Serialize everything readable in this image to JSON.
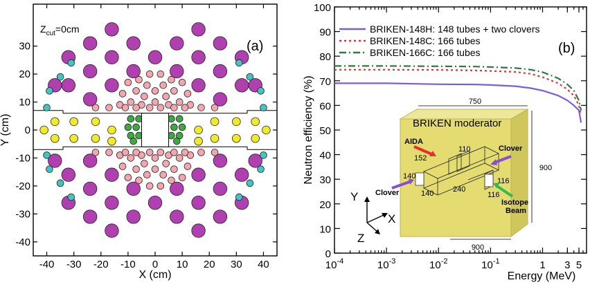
{
  "chart_data": [
    {
      "panel": "(a)",
      "type": "scatter",
      "annotation": "Z",
      "annotation_sub": "cut",
      "annotation_suffix": "=0cm",
      "xlabel": "X (cm)",
      "ylabel": "Y (cm)",
      "xlim": [
        -45,
        45
      ],
      "ylim": [
        -45,
        45
      ],
      "xticks": [
        -40,
        -30,
        -20,
        -10,
        0,
        10,
        20,
        30,
        40
      ],
      "yticks": [
        -40,
        -30,
        -20,
        -10,
        0,
        10,
        20,
        30
      ],
      "slab_y": [
        7,
        -7
      ],
      "slab_gap_x": [
        -34,
        34
      ],
      "slab_gap_y": [
        6,
        -6
      ],
      "central_square": [
        -5,
        -6,
        5,
        6
      ],
      "colors": {
        "large": "#b03fb0",
        "small": "#f2a6ad",
        "clover": "#3fa845",
        "cyan": "#45c3c3",
        "yellow": "#f0ea2c"
      },
      "series": [
        {
          "group": "large",
          "radius": 2.5,
          "points": [
            [
              -16,
              36
            ],
            [
              16,
              36
            ],
            [
              -24,
              31
            ],
            [
              -8,
              31
            ],
            [
              8,
              31
            ],
            [
              24,
              31
            ],
            [
              -32,
              26
            ],
            [
              -16,
              26
            ],
            [
              0,
              26
            ],
            [
              16,
              26
            ],
            [
              32,
              26
            ],
            [
              -24,
              21
            ],
            [
              -8,
              21
            ],
            [
              8,
              21
            ],
            [
              24,
              21
            ],
            [
              -32,
              16
            ],
            [
              -16,
              16
            ],
            [
              16,
              16
            ],
            [
              32,
              16
            ],
            [
              -24,
              11
            ],
            [
              24,
              11
            ],
            [
              -37,
              16
            ],
            [
              37,
              16
            ],
            [
              -16,
              -36
            ],
            [
              16,
              -36
            ],
            [
              -24,
              -31
            ],
            [
              -8,
              -31
            ],
            [
              8,
              -31
            ],
            [
              24,
              -31
            ],
            [
              -32,
              -26
            ],
            [
              -16,
              -26
            ],
            [
              0,
              -26
            ],
            [
              16,
              -26
            ],
            [
              32,
              -26
            ],
            [
              -24,
              -21
            ],
            [
              -8,
              -21
            ],
            [
              8,
              -21
            ],
            [
              24,
              -21
            ],
            [
              -32,
              -16
            ],
            [
              -16,
              -16
            ],
            [
              16,
              -16
            ],
            [
              32,
              -16
            ],
            [
              -24,
              -11
            ],
            [
              24,
              -11
            ],
            [
              -37,
              -11
            ],
            [
              37,
              -11
            ]
          ]
        },
        {
          "group": "small",
          "radius": 1.25,
          "points": [
            [
              -2,
              20
            ],
            [
              2,
              20
            ],
            [
              -6,
              18
            ],
            [
              6,
              18
            ],
            [
              -10,
              17
            ],
            [
              -3,
              16
            ],
            [
              3,
              16
            ],
            [
              10,
              17
            ],
            [
              -7,
              14
            ],
            [
              0,
              14
            ],
            [
              7,
              14
            ],
            [
              -12,
              13
            ],
            [
              12,
              13
            ],
            [
              -4,
              12
            ],
            [
              4,
              12
            ],
            [
              -9,
              10
            ],
            [
              0,
              10
            ],
            [
              9,
              10
            ],
            [
              -13,
              9
            ],
            [
              -5,
              9
            ],
            [
              5,
              9
            ],
            [
              13,
              9
            ],
            [
              -17,
              8
            ],
            [
              -11,
              8
            ],
            [
              -7,
              8
            ],
            [
              -2,
              8
            ],
            [
              2,
              8
            ],
            [
              7,
              8
            ],
            [
              11,
              8
            ],
            [
              17,
              8
            ],
            [
              -22,
              8
            ],
            [
              22,
              8
            ],
            [
              -2,
              -20
            ],
            [
              2,
              -20
            ],
            [
              -6,
              -18
            ],
            [
              6,
              -18
            ],
            [
              -10,
              -17
            ],
            [
              -3,
              -16
            ],
            [
              3,
              -16
            ],
            [
              10,
              -17
            ],
            [
              -7,
              -14
            ],
            [
              0,
              -14
            ],
            [
              7,
              -14
            ],
            [
              -12,
              -13
            ],
            [
              12,
              -13
            ],
            [
              -4,
              -12
            ],
            [
              4,
              -12
            ],
            [
              -9,
              -10
            ],
            [
              0,
              -10
            ],
            [
              9,
              -10
            ],
            [
              -13,
              -9
            ],
            [
              -5,
              -9
            ],
            [
              5,
              -9
            ],
            [
              13,
              -9
            ],
            [
              -17,
              -8
            ],
            [
              -11,
              -8
            ],
            [
              -7,
              -8
            ],
            [
              -2,
              -8
            ],
            [
              2,
              -8
            ],
            [
              7,
              -8
            ],
            [
              11,
              -8
            ],
            [
              17,
              -8
            ],
            [
              -22,
              -8
            ],
            [
              22,
              -8
            ]
          ]
        },
        {
          "group": "clover",
          "radius": 1.25,
          "points": [
            [
              -9,
              4
            ],
            [
              -6,
              4
            ],
            [
              -10,
              1
            ],
            [
              -7,
              1
            ],
            [
              -9,
              -2
            ],
            [
              -6,
              -2
            ],
            [
              -8,
              -4
            ],
            [
              6,
              4
            ],
            [
              9,
              4
            ],
            [
              7,
              1
            ],
            [
              10,
              1
            ],
            [
              6,
              -2
            ],
            [
              9,
              -2
            ],
            [
              8,
              -4
            ]
          ]
        },
        {
          "group": "cyan",
          "radius": 1.25,
          "points": [
            [
              -31,
              24
            ],
            [
              31,
              24
            ],
            [
              -35,
              19
            ],
            [
              35,
              19
            ],
            [
              -39,
              14
            ],
            [
              39,
              14
            ],
            [
              -40,
              8
            ],
            [
              40,
              8
            ],
            [
              -31,
              -24
            ],
            [
              31,
              -24
            ],
            [
              -35,
              -19
            ],
            [
              35,
              -19
            ],
            [
              -39,
              -14
            ],
            [
              39,
              -14
            ],
            [
              -40,
              -9
            ],
            [
              40,
              -9
            ]
          ]
        },
        {
          "group": "yellow",
          "radius": 1.5,
          "points": [
            [
              -37,
              3
            ],
            [
              -37,
              -3
            ],
            [
              -30,
              3
            ],
            [
              -30,
              -3
            ],
            [
              -22,
              3
            ],
            [
              -22,
              -3
            ],
            [
              -16,
              0
            ],
            [
              -16,
              -4
            ],
            [
              16,
              0
            ],
            [
              16,
              -4
            ],
            [
              22,
              3
            ],
            [
              22,
              -3
            ],
            [
              30,
              3
            ],
            [
              30,
              -3
            ],
            [
              37,
              3
            ],
            [
              37,
              -3
            ],
            [
              -41,
              0
            ],
            [
              41,
              0
            ]
          ]
        }
      ]
    },
    {
      "panel": "(b)",
      "type": "line",
      "xlabel": "Energy (MeV)",
      "ylabel": "Neutron efficiency (%)",
      "xscale": "log",
      "xlim": [
        0.0001,
        7
      ],
      "ylim": [
        0,
        100
      ],
      "xticks": [
        0.0001,
        0.001,
        0.01,
        0.1,
        1,
        3,
        5
      ],
      "xtick_labels": [
        "10",
        "10",
        "10",
        "10",
        "1",
        "3",
        "5"
      ],
      "xtick_exponents": [
        "-4",
        "-3",
        "-2",
        "-1",
        "",
        "",
        ""
      ],
      "yticks": [
        0,
        10,
        20,
        30,
        40,
        50,
        60,
        70,
        80,
        90,
        100
      ],
      "legend_position": "top",
      "series": [
        {
          "name": "BRIKEN-148H: 148 tubes + two clovers",
          "color": "#7a5ce0",
          "style": "solid",
          "x": [
            0.0001,
            0.001,
            0.01,
            0.05,
            0.1,
            0.3,
            0.6,
            1,
            2,
            3,
            4,
            5,
            5.5
          ],
          "y": [
            69,
            69,
            68.6,
            68.5,
            68.3,
            67.8,
            67,
            66,
            64,
            62,
            60,
            58,
            53
          ]
        },
        {
          "name": "BRIKEN-148C: 166 tubes",
          "color": "#e03030",
          "style": "dotted",
          "x": [
            0.0001,
            0.001,
            0.01,
            0.05,
            0.1,
            0.3,
            0.6,
            1,
            2,
            3,
            4,
            5,
            5.5
          ],
          "y": [
            74.5,
            74.5,
            74.4,
            74.2,
            74,
            73.6,
            72.8,
            71.5,
            69,
            66.5,
            64,
            60,
            56
          ]
        },
        {
          "name": "BRIKEN-166C: 166 tubes",
          "color": "#2e7a38",
          "style": "dashdot",
          "x": [
            0.0001,
            0.001,
            0.01,
            0.05,
            0.1,
            0.3,
            0.6,
            1,
            2,
            3,
            4,
            5,
            5.5
          ],
          "y": [
            76,
            76,
            75.9,
            75.8,
            75.6,
            75.2,
            74.5,
            73.5,
            71,
            68.5,
            66,
            62,
            58
          ]
        }
      ],
      "inset": {
        "title": "BRIKEN moderator",
        "box_color": "#e8e07a",
        "dims": [
          "750",
          "900",
          "900",
          "110",
          "152",
          "140",
          "140",
          "240",
          "116",
          "116"
        ],
        "labels": {
          "aida": "AIDA",
          "clover_right": "Clover",
          "clover_left": "Clover",
          "isotope": "Isotope",
          "beam": "Beam"
        },
        "axes": [
          "Y",
          "X",
          "Z"
        ],
        "arrow_colors": {
          "aida": "#e53030",
          "clover": "#8a4fd0",
          "beam": "#36b84a"
        }
      }
    }
  ]
}
